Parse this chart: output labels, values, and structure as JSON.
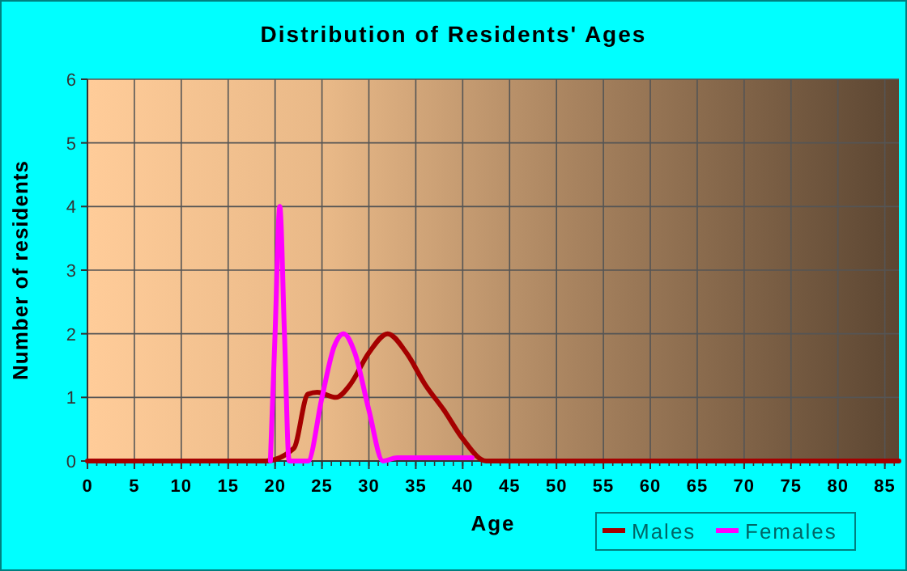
{
  "chart_data": {
    "type": "line",
    "title": "Distribution of Residents' Ages",
    "xlabel": "Age",
    "ylabel": "Number of residents",
    "xlim": [
      0,
      86.5
    ],
    "ylim": [
      0,
      6
    ],
    "xticks": [
      0,
      5,
      10,
      15,
      20,
      25,
      30,
      35,
      40,
      45,
      50,
      55,
      60,
      65,
      70,
      75,
      80,
      85
    ],
    "yticks": [
      0,
      1,
      2,
      3,
      4,
      5,
      6
    ],
    "grid": true,
    "legend": "bottom right",
    "marker": "none",
    "line_style": "solid",
    "series": [
      {
        "name": "Males",
        "color": "#a50000",
        "x": [
          0,
          10,
          19,
          22,
          23.5,
          24.5,
          26.5,
          28,
          30,
          32,
          34,
          36,
          38,
          40,
          42.5,
          50,
          60,
          70,
          80,
          86.5
        ],
        "values": [
          0,
          0,
          0,
          0.2,
          1.05,
          1.08,
          1,
          1.2,
          1.7,
          2,
          1.7,
          1.2,
          0.8,
          0.35,
          0,
          0,
          0,
          0,
          0,
          0
        ]
      },
      {
        "name": "Females",
        "color": "#ff00ff",
        "x": [
          19.5,
          20,
          20.5,
          21,
          21.5,
          23.5,
          25,
          26.3,
          27.3,
          28.5,
          30,
          31.5,
          33,
          41
        ],
        "values": [
          0,
          2,
          4,
          2,
          0,
          0,
          1,
          1.8,
          2,
          1.7,
          0.8,
          0,
          0.05,
          0.05
        ]
      }
    ]
  }
}
